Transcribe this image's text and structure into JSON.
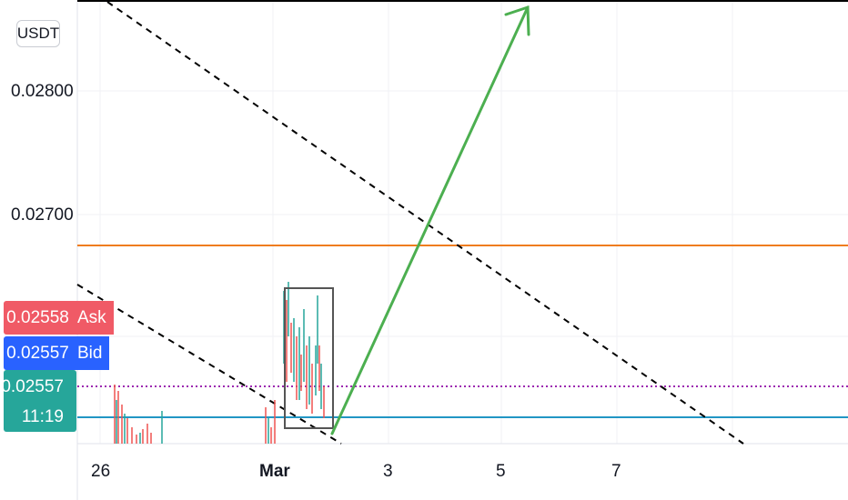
{
  "currency": "USDT",
  "price_axis": [
    "0.02800",
    "0.02700"
  ],
  "ask": {
    "value": "0.02558",
    "label": "Ask",
    "color": "#f05a66"
  },
  "bid": {
    "value": "0.02557",
    "label": "Bid",
    "color": "#2962ff"
  },
  "last_price": {
    "value": "0.02557",
    "countdown": "11:19",
    "color": "#26a69a"
  },
  "time_axis": [
    "26",
    "Mar",
    "3",
    "5",
    "7"
  ],
  "colors": {
    "resistance_line": "#ef7c1f",
    "support_line": "#2196c4",
    "projection_arrow": "#4caf50",
    "trend_lines": "#000000",
    "dotted_line": "#9c27b0"
  }
}
